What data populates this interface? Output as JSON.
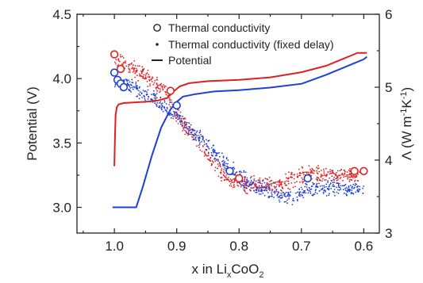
{
  "chart_data": {
    "type": "scatter",
    "title": "",
    "xlabel": {
      "text": "x in Li",
      "sub1": "x",
      "mid": "CoO",
      "sub2": "2"
    },
    "ylabel_left": "Potential (V)",
    "ylabel_right": {
      "base": "Λ (W m",
      "sup1": "-1",
      "mid": "K",
      "sup2": "-1",
      "end": ")"
    },
    "xlim": [
      1.06,
      0.575
    ],
    "x_reversed": true,
    "ylim_left": [
      2.8,
      4.5
    ],
    "ylim_right": [
      3,
      6
    ],
    "x_ticks": [
      1.0,
      0.9,
      0.8,
      0.7,
      0.6
    ],
    "x_tick_labels": [
      "1.0",
      "0.9",
      "0.8",
      "0.7",
      "0.6"
    ],
    "y_left_ticks": [
      3.0,
      3.5,
      4.0,
      4.5
    ],
    "y_left_tick_labels": [
      "3.0",
      "3.5",
      "4.0",
      "4.5"
    ],
    "y_right_ticks": [
      3,
      4,
      5,
      6
    ],
    "y_right_tick_labels": [
      "3",
      "4",
      "5",
      "6"
    ],
    "legend": {
      "position": "top-right",
      "entries": [
        {
          "marker": "circle-open",
          "label": "Thermal conductivity"
        },
        {
          "marker": "dot",
          "label": "Thermal conductivity (fixed delay)"
        },
        {
          "marker": "line",
          "label": "Potential"
        }
      ]
    },
    "colors": {
      "red": "#e02020",
      "blue": "#1f3fd6"
    },
    "series": [
      {
        "kind": "potential-line",
        "axis": "left",
        "color": "#e02020",
        "points": [
          [
            1.0,
            3.32
          ],
          [
            0.999,
            3.55
          ],
          [
            0.998,
            3.72
          ],
          [
            0.996,
            3.78
          ],
          [
            0.993,
            3.8
          ],
          [
            0.985,
            3.81
          ],
          [
            0.97,
            3.815
          ],
          [
            0.95,
            3.82
          ],
          [
            0.93,
            3.83
          ],
          [
            0.915,
            3.85
          ],
          [
            0.905,
            3.9
          ],
          [
            0.895,
            3.94
          ],
          [
            0.88,
            3.965
          ],
          [
            0.85,
            3.98
          ],
          [
            0.8,
            3.99
          ],
          [
            0.75,
            4.01
          ],
          [
            0.7,
            4.05
          ],
          [
            0.66,
            4.1
          ],
          [
            0.64,
            4.14
          ],
          [
            0.62,
            4.18
          ],
          [
            0.61,
            4.2
          ],
          [
            0.6,
            4.2
          ],
          [
            0.595,
            4.2
          ]
        ]
      },
      {
        "kind": "potential-line",
        "axis": "left",
        "color": "#1f3fd6",
        "points": [
          [
            1.003,
            3.0
          ],
          [
            0.97,
            3.0
          ],
          [
            0.965,
            3.0
          ],
          [
            0.955,
            3.15
          ],
          [
            0.94,
            3.4
          ],
          [
            0.925,
            3.62
          ],
          [
            0.91,
            3.76
          ],
          [
            0.9,
            3.82
          ],
          [
            0.89,
            3.86
          ],
          [
            0.87,
            3.88
          ],
          [
            0.84,
            3.9
          ],
          [
            0.8,
            3.91
          ],
          [
            0.75,
            3.93
          ],
          [
            0.7,
            3.96
          ],
          [
            0.66,
            4.03
          ],
          [
            0.64,
            4.07
          ],
          [
            0.62,
            4.11
          ],
          [
            0.6,
            4.15
          ],
          [
            0.595,
            4.17
          ]
        ]
      },
      {
        "kind": "thermal-conductivity-open-circles",
        "axis": "right",
        "color": "#e02020",
        "points": [
          [
            1.0,
            5.45
          ],
          [
            0.99,
            5.25
          ],
          [
            0.91,
            4.95
          ],
          [
            0.8,
            3.75
          ],
          [
            0.615,
            3.85
          ],
          [
            0.6,
            3.85
          ]
        ]
      },
      {
        "kind": "thermal-conductivity-open-circles",
        "axis": "right",
        "color": "#1f3fd6",
        "points": [
          [
            1.0,
            5.2
          ],
          [
            0.995,
            5.1
          ],
          [
            0.99,
            5.05
          ],
          [
            0.985,
            5.0
          ],
          [
            0.9,
            4.75
          ],
          [
            0.815,
            3.85
          ],
          [
            0.69,
            3.75
          ]
        ]
      },
      {
        "kind": "fixed-delay-dots",
        "axis": "right",
        "color": "#e02020",
        "trend": [
          [
            1.0,
            5.4
          ],
          [
            0.97,
            5.25
          ],
          [
            0.95,
            5.15
          ],
          [
            0.92,
            4.95
          ],
          [
            0.9,
            4.6
          ],
          [
            0.87,
            4.3
          ],
          [
            0.84,
            3.95
          ],
          [
            0.82,
            3.75
          ],
          [
            0.8,
            3.7
          ],
          [
            0.77,
            3.65
          ],
          [
            0.74,
            3.65
          ],
          [
            0.71,
            3.75
          ],
          [
            0.7,
            3.8
          ],
          [
            0.68,
            3.8
          ],
          [
            0.65,
            3.8
          ],
          [
            0.62,
            3.8
          ],
          [
            0.605,
            3.75
          ]
        ],
        "spread": 0.16
      },
      {
        "kind": "fixed-delay-dots",
        "axis": "right",
        "color": "#1f3fd6",
        "trend": [
          [
            1.0,
            5.1
          ],
          [
            0.97,
            5.0
          ],
          [
            0.95,
            4.9
          ],
          [
            0.92,
            4.75
          ],
          [
            0.9,
            4.6
          ],
          [
            0.87,
            4.35
          ],
          [
            0.84,
            4.1
          ],
          [
            0.81,
            3.85
          ],
          [
            0.79,
            3.7
          ],
          [
            0.76,
            3.6
          ],
          [
            0.73,
            3.5
          ],
          [
            0.71,
            3.5
          ],
          [
            0.69,
            3.6
          ],
          [
            0.66,
            3.65
          ],
          [
            0.63,
            3.6
          ],
          [
            0.6,
            3.6
          ]
        ],
        "spread": 0.16
      }
    ]
  }
}
